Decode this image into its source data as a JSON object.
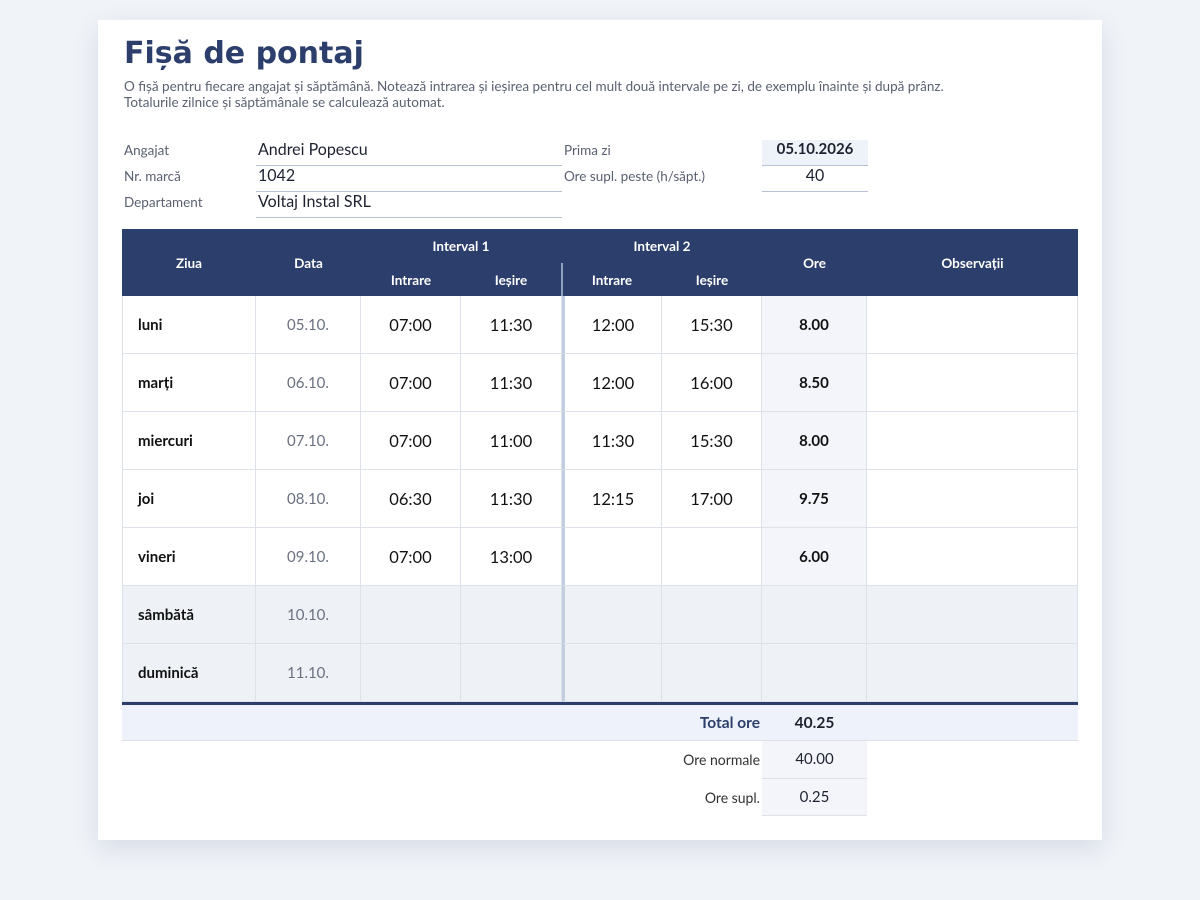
{
  "header": {
    "title": "Fișă de pontaj",
    "description": [
      "O fișă pentru fiecare angajat și săptămână. Notează intrarea și ieșirea pentru cel mult două intervale pe zi, de exemplu înainte și după prânz.",
      "Totalurile zilnice și săptămânale se calculează automat."
    ]
  },
  "info": {
    "left": [
      {
        "label": "Angajat",
        "value": "Andrei Popescu"
      },
      {
        "label": "Nr. marcă",
        "value": "1042"
      },
      {
        "label": "Departament",
        "value": "Voltaj Instal SRL"
      }
    ],
    "right": [
      {
        "label": "Prima zi",
        "value": "05.10.2026"
      },
      {
        "label": "Ore supl. peste (h/săpt.)",
        "value": "40"
      }
    ]
  },
  "table": {
    "headers": {
      "day": "Ziua",
      "date": "Data",
      "interval1": "Interval 1",
      "interval2": "Interval 2",
      "in": "Intrare",
      "out": "Ieșire",
      "hours": "Ore",
      "notes": "Observații"
    },
    "rows": [
      {
        "day": "luni",
        "date": "05.10.",
        "in1": "07:00",
        "out1": "11:30",
        "in2": "12:00",
        "out2": "15:30",
        "hours": "8.00"
      },
      {
        "day": "marți",
        "date": "06.10.",
        "in1": "07:00",
        "out1": "11:30",
        "in2": "12:00",
        "out2": "16:00",
        "hours": "8.50"
      },
      {
        "day": "miercuri",
        "date": "07.10.",
        "in1": "07:00",
        "out1": "11:00",
        "in2": "11:30",
        "out2": "15:30",
        "hours": "8.00"
      },
      {
        "day": "joi",
        "date": "08.10.",
        "in1": "06:30",
        "out1": "11:30",
        "in2": "12:15",
        "out2": "17:00",
        "hours": "9.75"
      },
      {
        "day": "vineri",
        "date": "09.10.",
        "in1": "07:00",
        "out1": "13:00",
        "hours": "6.00"
      },
      {
        "day": "sâmbătă",
        "date": "10.10.",
        "weekend": true
      },
      {
        "day": "duminică",
        "date": "11.10.",
        "weekend": true
      }
    ]
  },
  "totals": [
    {
      "label": "Total ore",
      "value": "40.25"
    },
    {
      "label": "Ore normale",
      "value": "40.00"
    },
    {
      "label": "Ore supl.",
      "value": "0.25"
    }
  ]
}
